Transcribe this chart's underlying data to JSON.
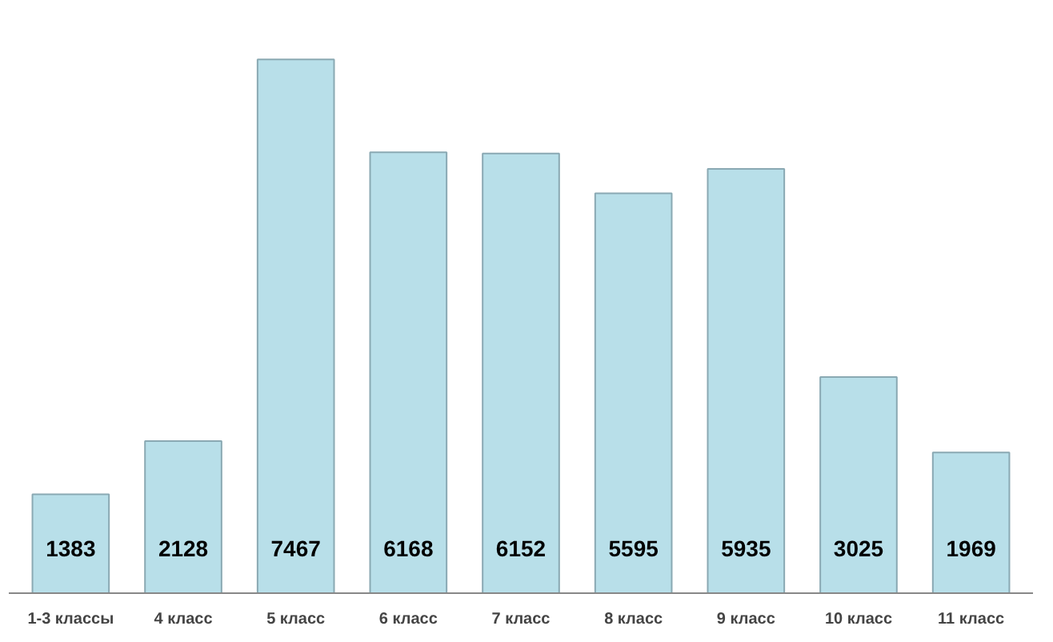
{
  "chart_data": {
    "type": "bar",
    "categories": [
      "1-3 классы",
      "4 класс",
      "5 класс",
      "6 класс",
      "7 класс",
      "8 класс",
      "9 класс",
      "10 класс",
      "11 класс"
    ],
    "values": [
      1383,
      2128,
      7467,
      6168,
      6152,
      5595,
      5935,
      3025,
      1969
    ],
    "color": "#b8dfe9",
    "data_labels": true
  }
}
